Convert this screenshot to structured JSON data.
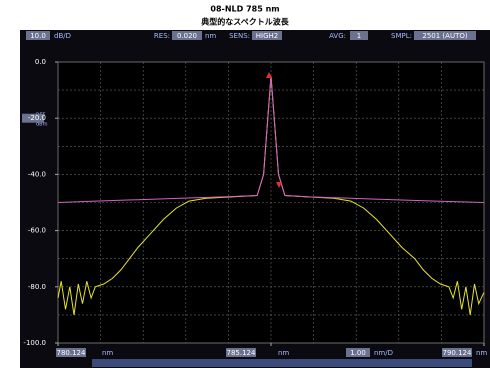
{
  "chart_data": {
    "type": "line",
    "title": "08-NLD 785 nm",
    "subtitle": "典型的なスペクトル波長",
    "header": {
      "scale": "10.0",
      "scale_unit": "dB/D",
      "res_label": "RES:",
      "res": "0.020",
      "res_unit": "nm",
      "sens_label": "SENS:",
      "sens": "HIGH2",
      "avg_label": "AVG:",
      "avg": "1",
      "smpl_label": "SMPL:",
      "smpl": "2501 (AUTO)"
    },
    "ref_label": "REF",
    "ref_unit": "dBm",
    "footer": {
      "start_unit": "nm",
      "center_unit": "nm",
      "span": "1.00",
      "span_unit": "nm/D",
      "stop_unit": "nm"
    },
    "xlim": [
      780.124,
      790.124
    ],
    "xticks": [
      780.124,
      785.124,
      790.124
    ],
    "xgrid": [
      780.124,
      781.124,
      782.124,
      783.124,
      784.124,
      785.124,
      786.124,
      787.124,
      788.124,
      789.124,
      790.124
    ],
    "ylim": [
      -100,
      0
    ],
    "yticks": [
      {
        "value": 0,
        "label": "0.0"
      },
      {
        "value": -20,
        "label": "-20.0"
      },
      {
        "value": -40,
        "label": "-40.0"
      },
      {
        "value": -60,
        "label": "-60.0"
      },
      {
        "value": -80,
        "label": "-80.0"
      },
      {
        "value": -100,
        "label": "-100.0"
      }
    ],
    "ygrid": [
      0,
      -10,
      -20,
      -30,
      -40,
      -50,
      -60,
      -70,
      -80,
      -90,
      -100
    ],
    "grid": true,
    "series": [
      {
        "color": "#e6e62a",
        "x": [
          780.124,
          780.2,
          780.3,
          780.4,
          780.5,
          780.6,
          780.7,
          780.8,
          780.9,
          781.0,
          781.2,
          781.4,
          781.6,
          781.8,
          782.0,
          782.3,
          782.6,
          782.9,
          783.2,
          783.6,
          784.2,
          784.8,
          784.95,
          785.05,
          785.124,
          785.2,
          785.3,
          785.45,
          786.0,
          786.6,
          787.0,
          787.3,
          787.6,
          787.9,
          788.2,
          788.5,
          788.7,
          788.9,
          789.1,
          789.3,
          789.4,
          789.5,
          789.6,
          789.7,
          789.8,
          789.9,
          790.0,
          790.124
        ],
        "values": [
          -84,
          -78,
          -88,
          -80,
          -90,
          -79,
          -86,
          -78,
          -84,
          -80,
          -79,
          -77,
          -74,
          -70,
          -66,
          -61,
          -56,
          -52,
          -49.5,
          -48.5,
          -48,
          -47.5,
          -40,
          -20,
          -5,
          -20,
          -40,
          -47.5,
          -48,
          -48.5,
          -49.5,
          -52,
          -56,
          -61,
          -66,
          -70,
          -74,
          -77,
          -79,
          -80,
          -84,
          -78,
          -88,
          -80,
          -90,
          -79,
          -86,
          -82
        ]
      },
      {
        "color": "#d464c8",
        "x": [
          780.124,
          781,
          782,
          783,
          784,
          784.8,
          784.95,
          785.05,
          785.124,
          785.2,
          785.3,
          785.45,
          786,
          787,
          788,
          789,
          790.124
        ],
        "values": [
          -50,
          -49.5,
          -49,
          -48.5,
          -48,
          -47.5,
          -40,
          -20,
          -5,
          -20,
          -40,
          -47.5,
          -48,
          -48.5,
          -49,
          -49.5,
          -50
        ]
      }
    ]
  }
}
